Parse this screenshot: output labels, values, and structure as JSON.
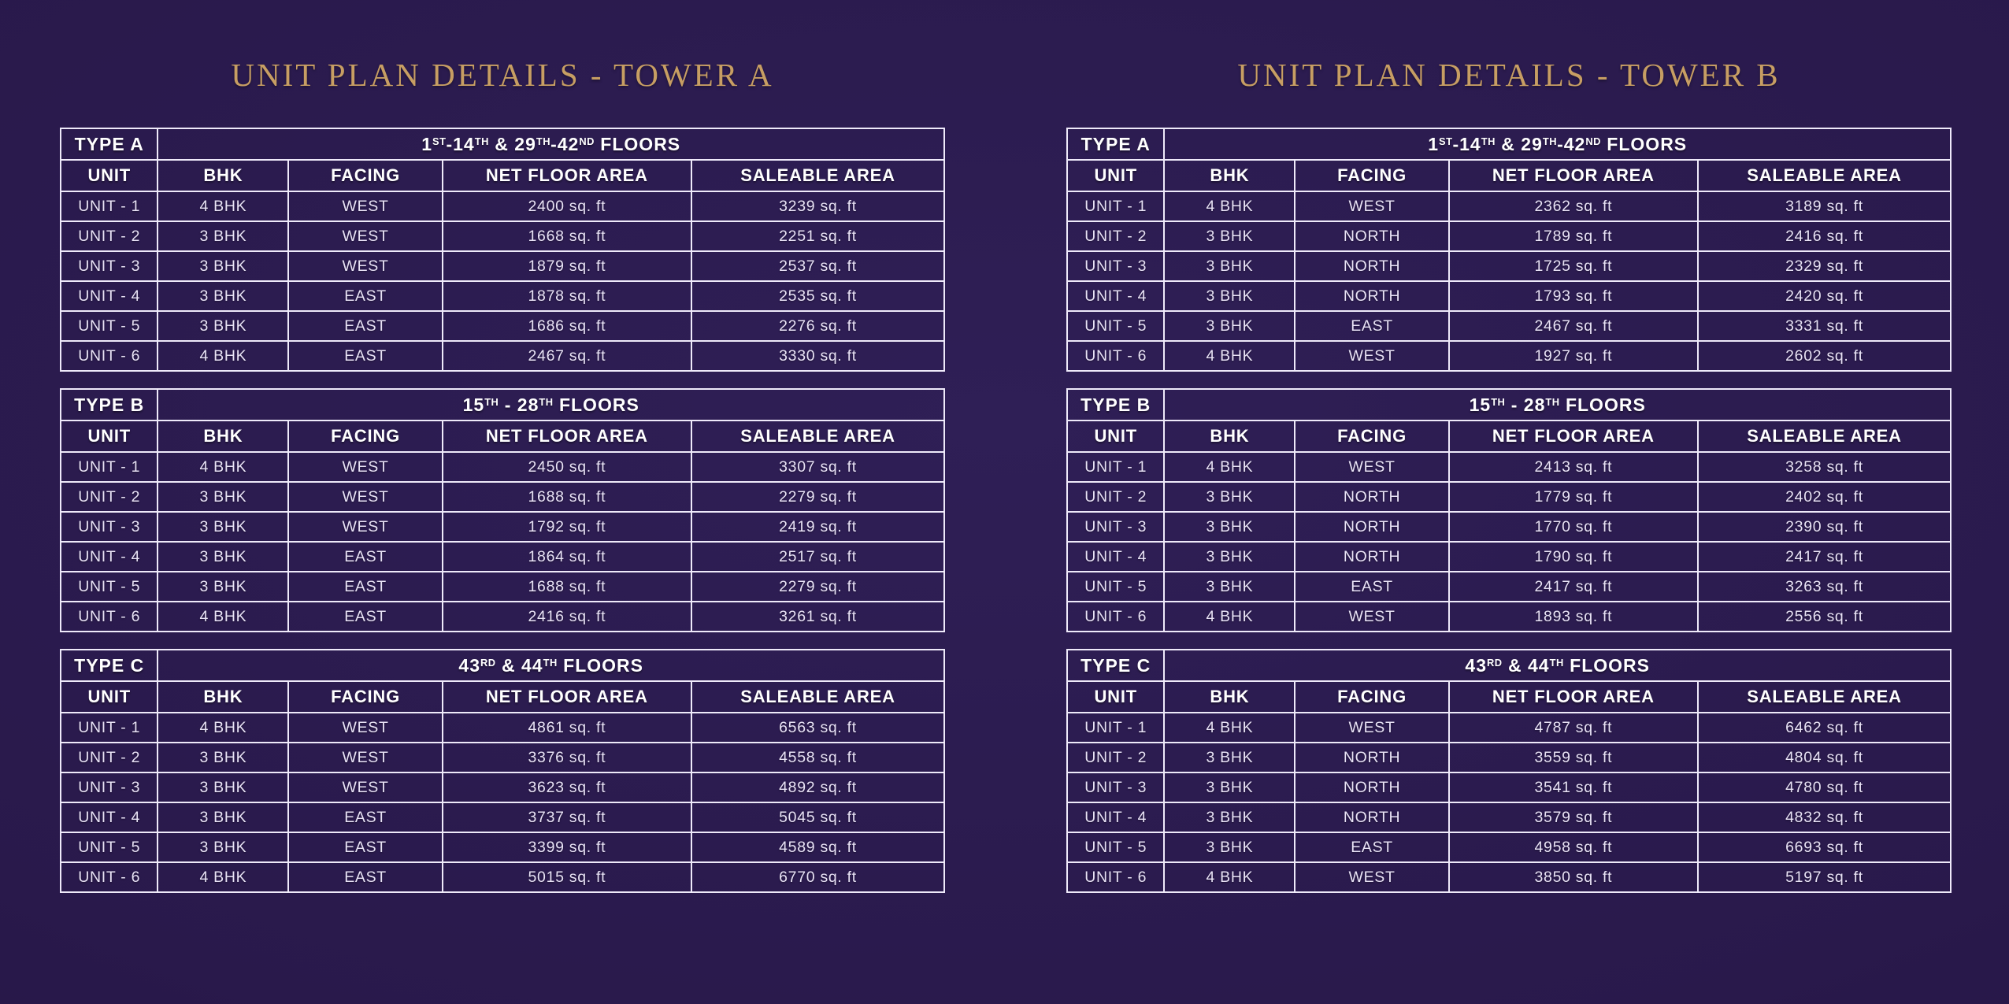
{
  "palette": {
    "background": "#29194b",
    "background_edge": "#1f0e3e",
    "title_gold": "#c79e63",
    "table_border": "#efeafa",
    "header_text": "#ffffff",
    "cell_text": "#e9e3f6"
  },
  "columns": [
    "UNIT",
    "BHK",
    "FACING",
    "NET FLOOR AREA",
    "SALEABLE AREA"
  ],
  "towers": [
    {
      "title": "UNIT PLAN DETAILS - TOWER A",
      "sections": [
        {
          "type_label": "TYPE A",
          "floors_text": "1ST-14TH & 29TH-42ND FLOORS",
          "floors_parts": [
            [
              "1",
              "ST"
            ],
            [
              "-14",
              "TH"
            ],
            [
              " & 29",
              "TH"
            ],
            [
              "-42",
              "ND"
            ],
            [
              " FLOORS",
              ""
            ]
          ],
          "rows": [
            [
              "UNIT - 1",
              "4 BHK",
              "WEST",
              "2400 sq. ft",
              "3239 sq. ft"
            ],
            [
              "UNIT - 2",
              "3 BHK",
              "WEST",
              "1668 sq. ft",
              "2251 sq. ft"
            ],
            [
              "UNIT - 3",
              "3 BHK",
              "WEST",
              "1879 sq. ft",
              "2537 sq. ft"
            ],
            [
              "UNIT - 4",
              "3 BHK",
              "EAST",
              "1878 sq. ft",
              "2535 sq. ft"
            ],
            [
              "UNIT - 5",
              "3 BHK",
              "EAST",
              "1686 sq. ft",
              "2276 sq. ft"
            ],
            [
              "UNIT - 6",
              "4 BHK",
              "EAST",
              "2467 sq. ft",
              "3330 sq. ft"
            ]
          ]
        },
        {
          "type_label": "TYPE B",
          "floors_text": "15TH - 28TH FLOORS",
          "floors_parts": [
            [
              "15",
              "TH"
            ],
            [
              " - 28",
              "TH"
            ],
            [
              " FLOORS",
              ""
            ]
          ],
          "rows": [
            [
              "UNIT - 1",
              "4 BHK",
              "WEST",
              "2450 sq. ft",
              "3307 sq. ft"
            ],
            [
              "UNIT - 2",
              "3 BHK",
              "WEST",
              "1688 sq. ft",
              "2279 sq. ft"
            ],
            [
              "UNIT - 3",
              "3 BHK",
              "WEST",
              "1792 sq. ft",
              "2419 sq. ft"
            ],
            [
              "UNIT - 4",
              "3 BHK",
              "EAST",
              "1864 sq. ft",
              "2517 sq. ft"
            ],
            [
              "UNIT - 5",
              "3 BHK",
              "EAST",
              "1688 sq. ft",
              "2279 sq. ft"
            ],
            [
              "UNIT - 6",
              "4 BHK",
              "EAST",
              "2416 sq. ft",
              "3261 sq. ft"
            ]
          ]
        },
        {
          "type_label": "TYPE C",
          "floors_text": "43RD & 44TH FLOORS",
          "floors_parts": [
            [
              "43",
              "RD"
            ],
            [
              " & 44",
              "TH"
            ],
            [
              " FLOORS",
              ""
            ]
          ],
          "rows": [
            [
              "UNIT - 1",
              "4 BHK",
              "WEST",
              "4861 sq. ft",
              "6563 sq. ft"
            ],
            [
              "UNIT - 2",
              "3 BHK",
              "WEST",
              "3376 sq. ft",
              "4558 sq. ft"
            ],
            [
              "UNIT - 3",
              "3 BHK",
              "WEST",
              "3623 sq. ft",
              "4892 sq. ft"
            ],
            [
              "UNIT - 4",
              "3 BHK",
              "EAST",
              "3737 sq. ft",
              "5045 sq. ft"
            ],
            [
              "UNIT - 5",
              "3 BHK",
              "EAST",
              "3399 sq. ft",
              "4589 sq. ft"
            ],
            [
              "UNIT - 6",
              "4 BHK",
              "EAST",
              "5015 sq. ft",
              "6770 sq. ft"
            ]
          ]
        }
      ]
    },
    {
      "title": "UNIT PLAN DETAILS - TOWER B",
      "sections": [
        {
          "type_label": "TYPE A",
          "floors_text": "1ST-14TH & 29TH-42ND FLOORS",
          "floors_parts": [
            [
              "1",
              "ST"
            ],
            [
              "-14",
              "TH"
            ],
            [
              " & 29",
              "TH"
            ],
            [
              "-42",
              "ND"
            ],
            [
              " FLOORS",
              ""
            ]
          ],
          "rows": [
            [
              "UNIT - 1",
              "4 BHK",
              "WEST",
              "2362 sq. ft",
              "3189 sq. ft"
            ],
            [
              "UNIT - 2",
              "3 BHK",
              "NORTH",
              "1789 sq. ft",
              "2416 sq. ft"
            ],
            [
              "UNIT - 3",
              "3 BHK",
              "NORTH",
              "1725 sq. ft",
              "2329 sq. ft"
            ],
            [
              "UNIT - 4",
              "3 BHK",
              "NORTH",
              "1793 sq. ft",
              "2420 sq. ft"
            ],
            [
              "UNIT - 5",
              "3 BHK",
              "EAST",
              "2467 sq. ft",
              "3331 sq. ft"
            ],
            [
              "UNIT - 6",
              "4 BHK",
              "WEST",
              "1927 sq. ft",
              "2602 sq. ft"
            ]
          ]
        },
        {
          "type_label": "TYPE B",
          "floors_text": "15TH - 28TH FLOORS",
          "floors_parts": [
            [
              "15",
              "TH"
            ],
            [
              " - 28",
              "TH"
            ],
            [
              " FLOORS",
              ""
            ]
          ],
          "rows": [
            [
              "UNIT - 1",
              "4 BHK",
              "WEST",
              "2413 sq. ft",
              "3258 sq. ft"
            ],
            [
              "UNIT - 2",
              "3 BHK",
              "NORTH",
              "1779 sq. ft",
              "2402 sq. ft"
            ],
            [
              "UNIT - 3",
              "3 BHK",
              "NORTH",
              "1770 sq. ft",
              "2390 sq. ft"
            ],
            [
              "UNIT - 4",
              "3 BHK",
              "NORTH",
              "1790 sq. ft",
              "2417 sq. ft"
            ],
            [
              "UNIT - 5",
              "3 BHK",
              "EAST",
              "2417 sq. ft",
              "3263 sq. ft"
            ],
            [
              "UNIT - 6",
              "4 BHK",
              "WEST",
              "1893 sq. ft",
              "2556 sq. ft"
            ]
          ]
        },
        {
          "type_label": "TYPE C",
          "floors_text": "43RD & 44TH FLOORS",
          "floors_parts": [
            [
              "43",
              "RD"
            ],
            [
              " & 44",
              "TH"
            ],
            [
              " FLOORS",
              ""
            ]
          ],
          "rows": [
            [
              "UNIT - 1",
              "4 BHK",
              "WEST",
              "4787 sq. ft",
              "6462 sq. ft"
            ],
            [
              "UNIT - 2",
              "3 BHK",
              "NORTH",
              "3559 sq. ft",
              "4804 sq. ft"
            ],
            [
              "UNIT - 3",
              "3 BHK",
              "NORTH",
              "3541 sq. ft",
              "4780 sq. ft"
            ],
            [
              "UNIT - 4",
              "3 BHK",
              "NORTH",
              "3579 sq. ft",
              "4832 sq. ft"
            ],
            [
              "UNIT - 5",
              "3 BHK",
              "EAST",
              "4958 sq. ft",
              "6693 sq. ft"
            ],
            [
              "UNIT - 6",
              "4 BHK",
              "WEST",
              "3850 sq. ft",
              "5197 sq. ft"
            ]
          ]
        }
      ]
    }
  ]
}
